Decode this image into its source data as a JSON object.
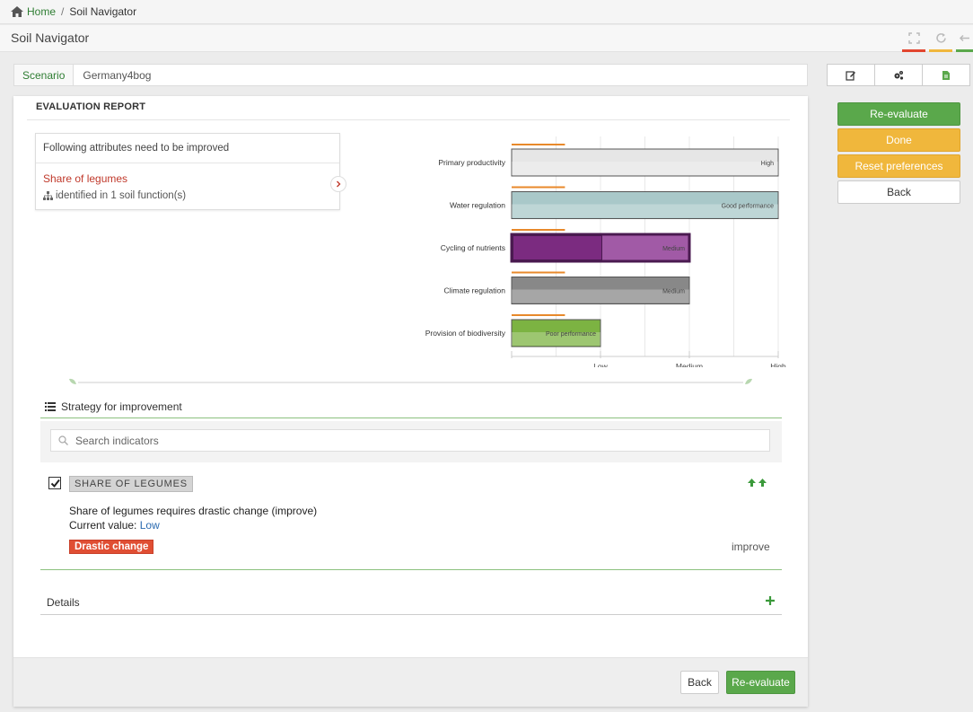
{
  "breadcrumb": {
    "home": "Home",
    "separator": "/",
    "current": "Soil Navigator"
  },
  "window": {
    "title": "Soil Navigator"
  },
  "window_controls": [
    {
      "name": "expand-icon",
      "bar_color": "#e2452e"
    },
    {
      "name": "refresh-icon",
      "bar_color": "#f0b73c"
    },
    {
      "name": "back-arrow-icon",
      "bar_color": "#5aa84b"
    }
  ],
  "scenario": {
    "label": "Scenario",
    "value": "Germany4bog"
  },
  "toolbar": [
    "edit-icon",
    "gears-icon",
    "document-icon"
  ],
  "side_buttons": {
    "reevaluate": "Re-evaluate",
    "done": "Done",
    "reset": "Reset preferences",
    "back": "Back"
  },
  "report": {
    "title": "EVALUATION REPORT",
    "attributes_header": "Following attributes need to be improved",
    "attribute_name": "Share of legumes",
    "attribute_sub": "identified in 1 soil function(s)"
  },
  "chart_data": {
    "type": "bar",
    "orientation": "horizontal",
    "categories": [
      "Primary productivity",
      "Water regulation",
      "Cycling of nutrients",
      "Climate regulation",
      "Provision of biodiversity"
    ],
    "values": [
      3,
      3,
      2,
      2,
      1
    ],
    "bar_labels": [
      "High",
      "Good performance",
      "Medium",
      "Medium",
      "Poor performance"
    ],
    "highlight": {
      "category": "Cycling of nutrients",
      "inner_value": 1
    },
    "reference_values": [
      0.6,
      0.6,
      0.6,
      0.6,
      0.6
    ],
    "ticks": [
      "Low",
      "Medium",
      "High"
    ],
    "tick_values": [
      1,
      2,
      3
    ],
    "xlim": [
      0,
      3
    ],
    "colors": [
      "#e6e6e6",
      "#a9c8c9",
      "#7b2b80",
      "#888888",
      "#7cb342"
    ],
    "reference_color": "#e8892b"
  },
  "strategy": {
    "title": "Strategy for improvement",
    "search_placeholder": "Search indicators",
    "indicator": {
      "label": "SHARE OF LEGUMES",
      "checked": true,
      "description": "Share of legumes requires drastic change (improve)",
      "current_label": "Current value:",
      "current_value": "Low",
      "badge": "Drastic change",
      "direction": "improve"
    },
    "details": "Details"
  },
  "footer": {
    "back": "Back",
    "reevaluate": "Re-evaluate"
  }
}
